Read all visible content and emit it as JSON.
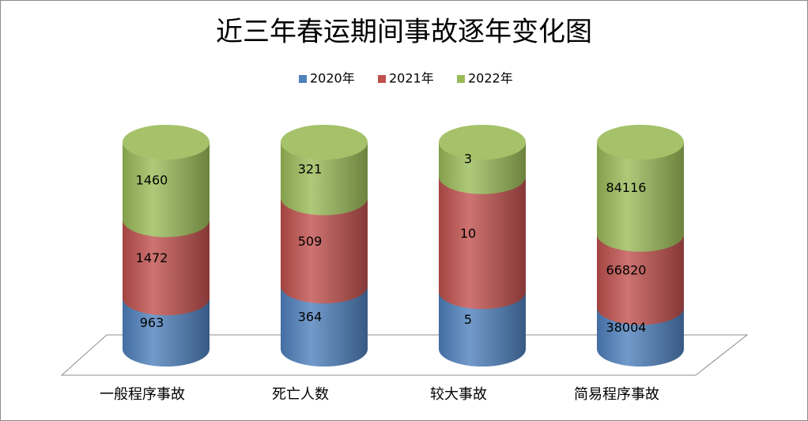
{
  "chart_data": {
    "type": "bar",
    "stacked": "percent",
    "title": "近三年春运期间事故逐年变化图",
    "categories": [
      "一般程序事故",
      "死亡人数",
      "较大事故",
      "简易程序事故"
    ],
    "series": [
      {
        "name": "2020年",
        "color": "#4f81bd",
        "values": [
          963,
          364,
          5,
          38004
        ]
      },
      {
        "name": "2021年",
        "color": "#c0504d",
        "values": [
          1472,
          509,
          10,
          66820
        ]
      },
      {
        "name": "2022年",
        "color": "#9bbb59",
        "values": [
          1460,
          321,
          3,
          84116
        ]
      }
    ],
    "legend": "top"
  }
}
